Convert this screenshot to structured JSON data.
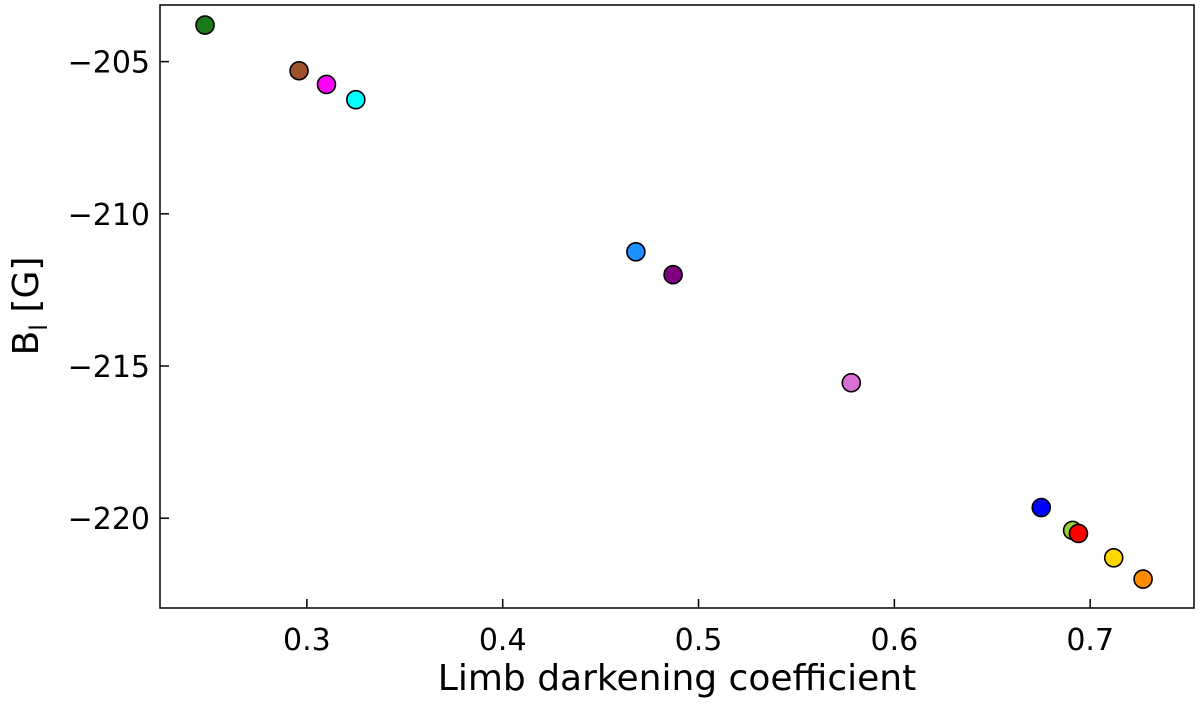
{
  "chart_data": {
    "type": "scatter",
    "title": "",
    "xlabel": "Limb darkening coefficient",
    "ylabel": {
      "main": "B",
      "sub": "l",
      "unit": " [G]"
    },
    "xlim": [
      0.225,
      0.753
    ],
    "ylim": [
      -222.95,
      -203.14
    ],
    "xticks": [
      {
        "value": 0.3,
        "label": "0.3"
      },
      {
        "value": 0.4,
        "label": "0.4"
      },
      {
        "value": 0.5,
        "label": "0.5"
      },
      {
        "value": 0.6,
        "label": "0.6"
      },
      {
        "value": 0.7,
        "label": "0.7"
      }
    ],
    "yticks": [
      {
        "value": -205,
        "label": "−205"
      },
      {
        "value": -210,
        "label": "−210"
      },
      {
        "value": -215,
        "label": "−215"
      },
      {
        "value": -220,
        "label": "−220"
      }
    ],
    "grid": false,
    "points": [
      {
        "x": 0.248,
        "y": -203.8,
        "color": "#1a7a1a"
      },
      {
        "x": 0.296,
        "y": -205.3,
        "color": "#a0522d"
      },
      {
        "x": 0.31,
        "y": -205.75,
        "color": "#ff00ff"
      },
      {
        "x": 0.325,
        "y": -206.25,
        "color": "#00ffff"
      },
      {
        "x": 0.468,
        "y": -211.25,
        "color": "#1e90ff"
      },
      {
        "x": 0.487,
        "y": -212.0,
        "color": "#800080"
      },
      {
        "x": 0.578,
        "y": -215.55,
        "color": "#da70d6"
      },
      {
        "x": 0.675,
        "y": -219.65,
        "color": "#0000ff"
      },
      {
        "x": 0.691,
        "y": -220.4,
        "color": "#9acd32"
      },
      {
        "x": 0.694,
        "y": -220.5,
        "color": "#ff0000"
      },
      {
        "x": 0.712,
        "y": -221.3,
        "color": "#ffd700"
      },
      {
        "x": 0.727,
        "y": -222.0,
        "color": "#ff8c00"
      }
    ]
  }
}
